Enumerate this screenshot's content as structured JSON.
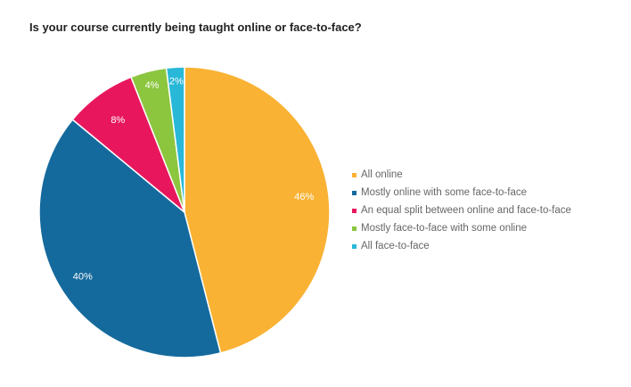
{
  "chart_data": {
    "type": "pie",
    "title": "Is your course currently being taught online or face-to-face?",
    "categories": [
      "All online",
      "Mostly online with some face-to-face",
      "An equal split between online and face-to-face",
      "Mostly face-to-face with some online",
      "All face-to-face"
    ],
    "values": [
      46,
      40,
      8,
      4,
      2
    ],
    "data_labels": [
      "46%",
      "40%",
      "8%",
      "4%",
      "2%"
    ],
    "colors": [
      "#f9b233",
      "#156a9d",
      "#e8175d",
      "#8cc63f",
      "#29b8d8"
    ],
    "legend_position": "right"
  }
}
